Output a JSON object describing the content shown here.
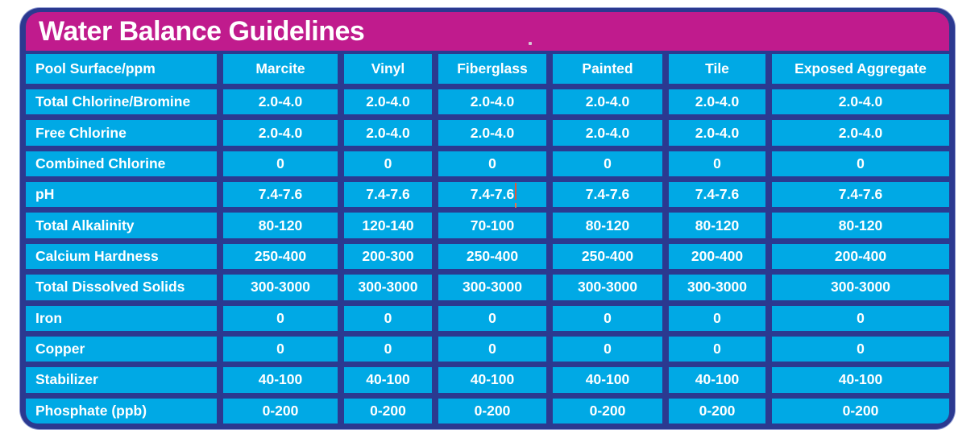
{
  "title": "Water Balance Guidelines",
  "table": {
    "columns": [
      "Pool Surface/ppm",
      "Marcite",
      "Vinyl",
      "Fiberglass",
      "Painted",
      "Tile",
      "Exposed Aggregate"
    ],
    "rows": [
      {
        "label": "Total Chlorine/Bromine",
        "values": [
          "2.0-4.0",
          "2.0-4.0",
          "2.0-4.0",
          "2.0-4.0",
          "2.0-4.0",
          "2.0-4.0"
        ]
      },
      {
        "label": "Free Chlorine",
        "values": [
          "2.0-4.0",
          "2.0-4.0",
          "2.0-4.0",
          "2.0-4.0",
          "2.0-4.0",
          "2.0-4.0"
        ]
      },
      {
        "label": "Combined Chlorine",
        "values": [
          "0",
          "0",
          "0",
          "0",
          "0",
          "0"
        ]
      },
      {
        "label": "pH",
        "values": [
          "7.4-7.6",
          "7.4-7.6",
          "7.4-7.6",
          "7.4-7.6",
          "7.4-7.6",
          "7.4-7.6"
        ]
      },
      {
        "label": "Total Alkalinity",
        "values": [
          "80-120",
          "120-140",
          "70-100",
          "80-120",
          "80-120",
          "80-120"
        ]
      },
      {
        "label": "Calcium Hardness",
        "values": [
          "250-400",
          "200-300",
          "250-400",
          "250-400",
          "200-400",
          "200-400"
        ]
      },
      {
        "label": "Total Dissolved Solids",
        "values": [
          "300-3000",
          "300-3000",
          "300-3000",
          "300-3000",
          "300-3000",
          "300-3000"
        ]
      },
      {
        "label": "Iron",
        "values": [
          "0",
          "0",
          "0",
          "0",
          "0",
          "0"
        ]
      },
      {
        "label": "Copper",
        "values": [
          "0",
          "0",
          "0",
          "0",
          "0",
          "0"
        ]
      },
      {
        "label": "Stabilizer",
        "values": [
          "40-100",
          "40-100",
          "40-100",
          "40-100",
          "40-100",
          "40-100"
        ]
      },
      {
        "label": "Phosphate (ppb)",
        "values": [
          "0-200",
          "0-200",
          "0-200",
          "0-200",
          "0-200",
          "0-200"
        ]
      }
    ]
  },
  "colors": {
    "title_band_magenta": "#C01B8D",
    "cell_cyan": "#00A9E5",
    "frame_navy": "#2B3990",
    "text_white": "#FFFFFF",
    "caret_orange": "#E0573C"
  }
}
